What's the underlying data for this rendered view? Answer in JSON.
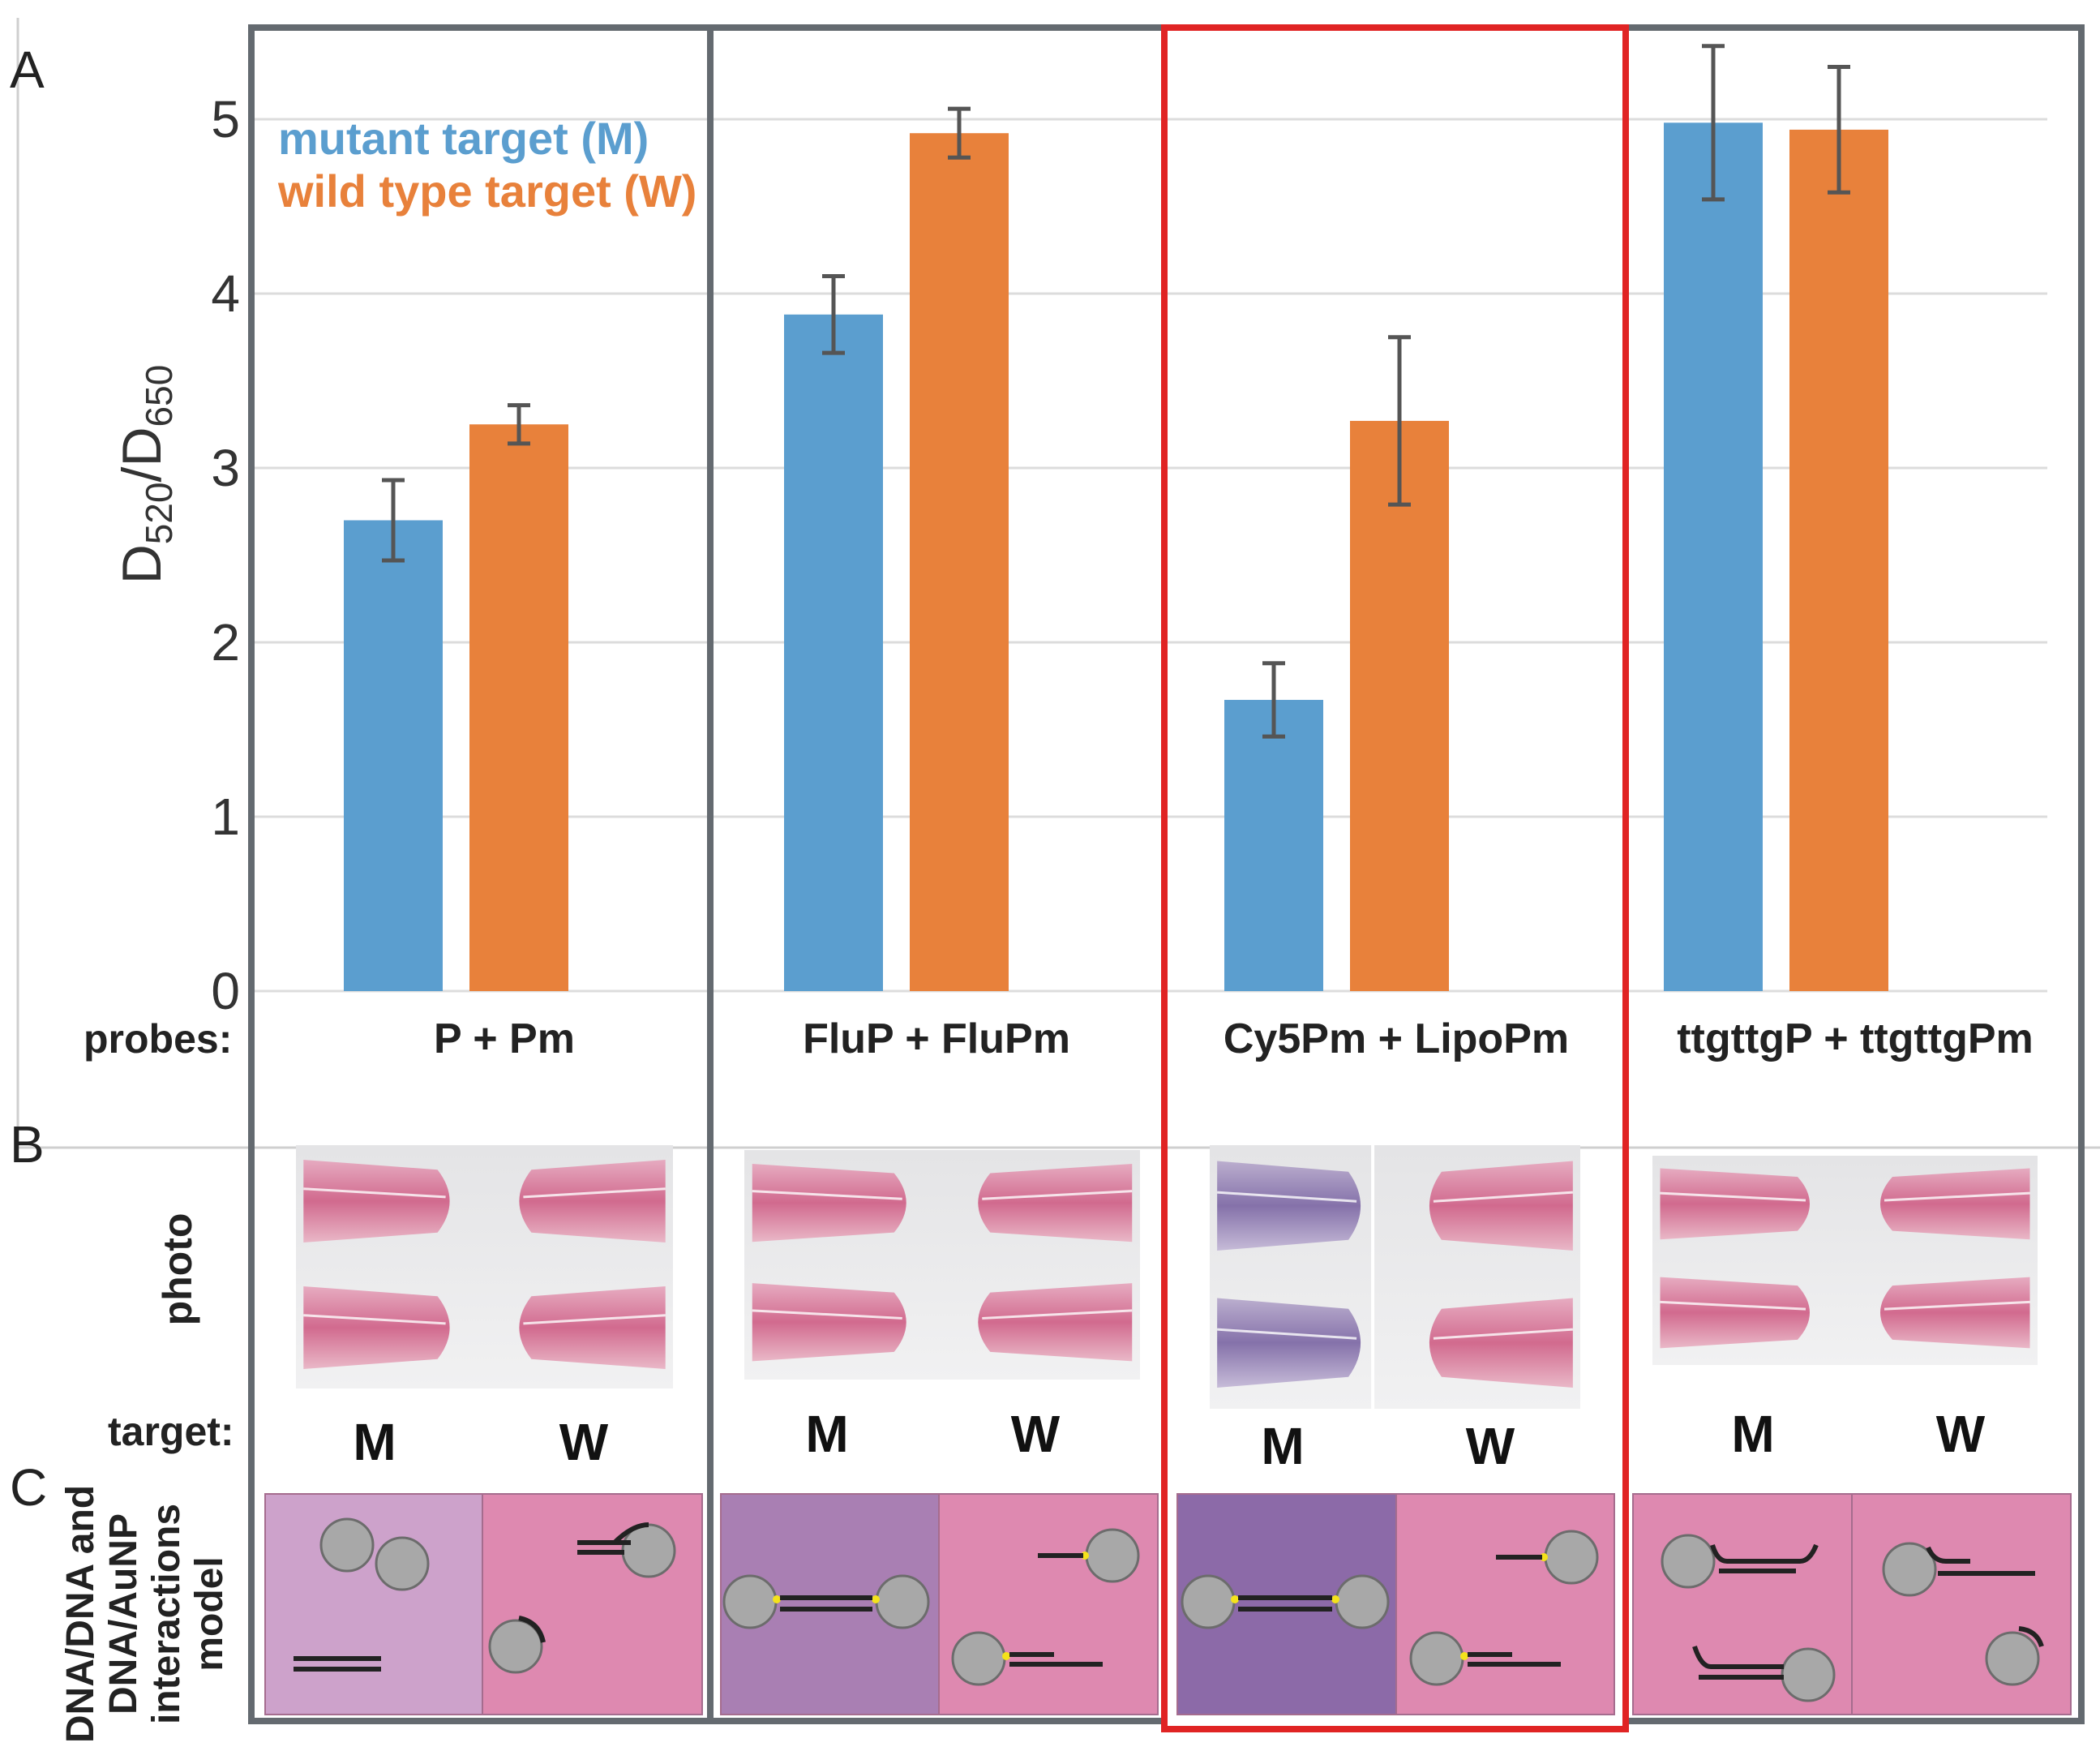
{
  "panels": {
    "a": "A",
    "b": "B",
    "c": "C"
  },
  "labels": {
    "probes": "probes:",
    "photo": "photo",
    "target": "target:",
    "model_line1": "DNA/DNA and",
    "model_line2": "DNA/AuNP",
    "model_line3": "interactions",
    "model_line4": "model"
  },
  "colors": {
    "mutant": "#5b9ecf",
    "wild": "#e8813b",
    "error": "#555555",
    "highlight": "#e02424",
    "frame": "#646a70"
  },
  "chart_data": {
    "type": "bar",
    "title": "",
    "xlabel": "probes:",
    "ylabel": "D520/D650",
    "ylabel_main": "D",
    "ylabel_sub1": "520",
    "ylabel_slash": "/D",
    "ylabel_sub2": "650",
    "ylim": [
      0,
      5.5
    ],
    "yticks": [
      "0",
      "1",
      "2",
      "3",
      "4",
      "5"
    ],
    "categories": [
      "P + Pm",
      "FluP + FluPm",
      "Cy5Pm + LipoPm",
      "ttgttgP + ttgttgPm"
    ],
    "legend": [
      "mutant target (M)",
      "wild type target (W)"
    ],
    "series": [
      {
        "name": "mutant target (M)",
        "values": [
          2.7,
          3.88,
          1.67,
          4.98
        ],
        "errors": [
          0.23,
          0.22,
          0.21,
          0.44
        ]
      },
      {
        "name": "wild type target (W)",
        "values": [
          3.25,
          4.92,
          3.27,
          4.94
        ],
        "errors": [
          0.11,
          0.14,
          0.48,
          0.36
        ]
      }
    ]
  },
  "targets": {
    "m": "M",
    "w": "W"
  },
  "highlighted_group": "Cy5Pm + LipoPm"
}
